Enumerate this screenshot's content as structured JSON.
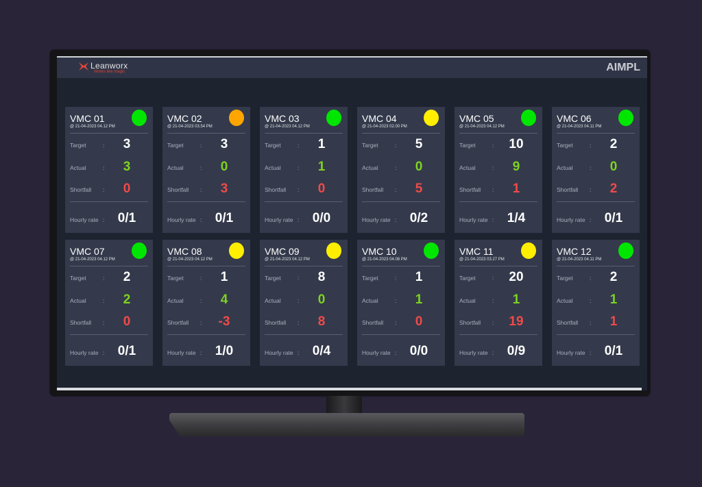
{
  "header": {
    "brand": "Leanworx",
    "tagline": "Works like magic",
    "company": "AIMPL"
  },
  "labels": {
    "target": "Target",
    "actual": "Actual",
    "shortfall": "Shortfall",
    "hourly_rate": "Hourly rate",
    "colon": ":"
  },
  "colors": {
    "green": "#00e600",
    "yellow": "#ffee00",
    "orange": "#ffa500",
    "actual_text": "#7ed321",
    "shortfall_text": "#f04a4a"
  },
  "machines": [
    {
      "name": "VMC 01",
      "timestamp": "@ 21-04-2023 04.12 PM",
      "status": "green",
      "target": "3",
      "actual": "3",
      "shortfall": "0",
      "hourly_rate": "0/1"
    },
    {
      "name": "VMC 02",
      "timestamp": "@ 21-04-2023 03.54 PM",
      "status": "orange",
      "target": "3",
      "actual": "0",
      "shortfall": "3",
      "hourly_rate": "0/1"
    },
    {
      "name": "VMC 03",
      "timestamp": "@ 21-04-2023 04.12 PM",
      "status": "green",
      "target": "1",
      "actual": "1",
      "shortfall": "0",
      "hourly_rate": "0/0"
    },
    {
      "name": "VMC 04",
      "timestamp": "@ 21-04-2023 02.00 PM",
      "status": "yellow",
      "target": "5",
      "actual": "0",
      "shortfall": "5",
      "hourly_rate": "0/2"
    },
    {
      "name": "VMC 05",
      "timestamp": "@ 21-04-2023 04.12 PM",
      "status": "green",
      "target": "10",
      "actual": "9",
      "shortfall": "1",
      "hourly_rate": "1/4"
    },
    {
      "name": "VMC 06",
      "timestamp": "@ 21-04-2023 04.11 PM",
      "status": "green",
      "target": "2",
      "actual": "0",
      "shortfall": "2",
      "hourly_rate": "0/1"
    },
    {
      "name": "VMC 07",
      "timestamp": "@ 21-04-2023 04.12 PM",
      "status": "green",
      "target": "2",
      "actual": "2",
      "shortfall": "0",
      "hourly_rate": "0/1"
    },
    {
      "name": "VMC 08",
      "timestamp": "@ 21-04-2023 04.12 PM",
      "status": "yellow",
      "target": "1",
      "actual": "4",
      "shortfall": "-3",
      "hourly_rate": "1/0"
    },
    {
      "name": "VMC 09",
      "timestamp": "@ 21-04-2023 04.12 PM",
      "status": "yellow",
      "target": "8",
      "actual": "0",
      "shortfall": "8",
      "hourly_rate": "0/4"
    },
    {
      "name": "VMC 10",
      "timestamp": "@ 21-04-2023 04.08 PM",
      "status": "green",
      "target": "1",
      "actual": "1",
      "shortfall": "0",
      "hourly_rate": "0/0"
    },
    {
      "name": "VMC 11",
      "timestamp": "@ 21-04-2023 03.27 PM",
      "status": "yellow",
      "target": "20",
      "actual": "1",
      "shortfall": "19",
      "hourly_rate": "0/9"
    },
    {
      "name": "VMC 12",
      "timestamp": "@ 21-04-2023 04.11 PM",
      "status": "green",
      "target": "2",
      "actual": "1",
      "shortfall": "1",
      "hourly_rate": "0/1"
    }
  ]
}
